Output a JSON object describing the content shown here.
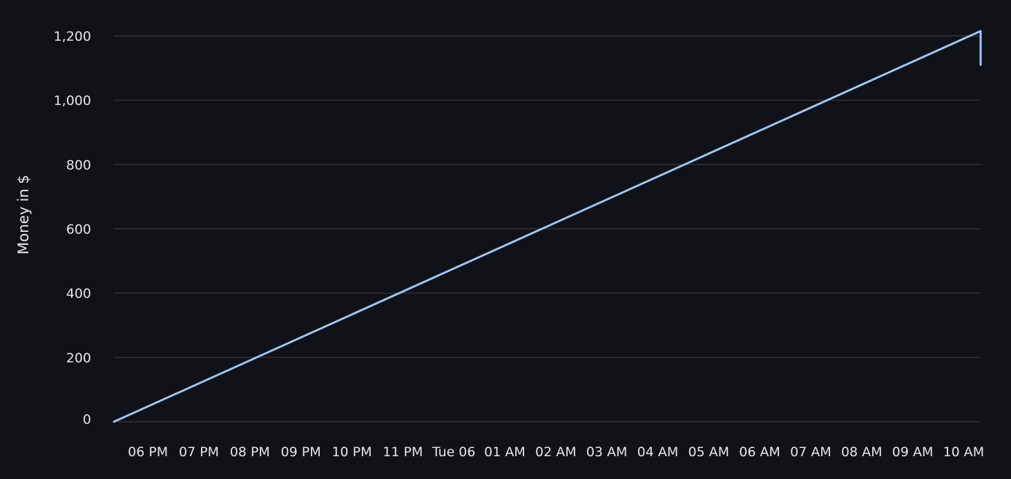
{
  "colors": {
    "background": "#111218",
    "grid": "#3a3b44",
    "text": "#e6e6ea",
    "series_line": "#9cc8fb"
  },
  "chart_data": {
    "type": "line",
    "title": "",
    "xlabel": "",
    "ylabel": "Money in $",
    "ylim": [
      0,
      1215
    ],
    "grid": true,
    "y_ticks": [
      0,
      200,
      400,
      600,
      800,
      1000,
      1200
    ],
    "y_tick_labels": [
      "0",
      "200",
      "400",
      "600",
      "800",
      "1,000",
      "1,200"
    ],
    "x_range": [
      "05:20 PM",
      "10:20 AM"
    ],
    "x_ticks": [
      "06 PM",
      "07 PM",
      "08 PM",
      "09 PM",
      "10 PM",
      "11 PM",
      "Tue 06",
      "01 AM",
      "02 AM",
      "03 AM",
      "04 AM",
      "05 AM",
      "06 AM",
      "07 AM",
      "08 AM",
      "09 AM",
      "10 AM"
    ],
    "series": [
      {
        "x": [
          "05:20 PM",
          "10:20 AM",
          "10:20 AM"
        ],
        "values": [
          0,
          1215,
          1110
        ]
      }
    ]
  }
}
